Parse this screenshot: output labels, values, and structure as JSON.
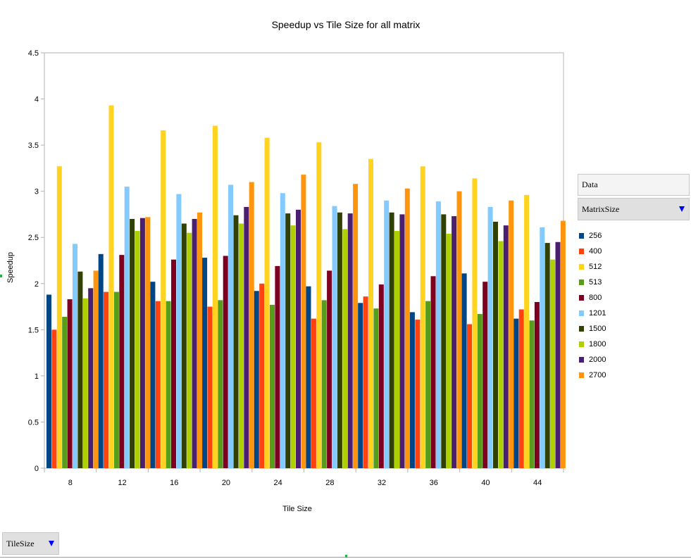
{
  "chart_data": {
    "type": "bar",
    "title": "Speedup vs Tile Size for all matrix",
    "xlabel": "Tile Size",
    "ylabel": "Speedup",
    "ylim": [
      0,
      4.5
    ],
    "yticks": [
      "0",
      "0.5",
      "1",
      "1.5",
      "2",
      "2.5",
      "3",
      "3.5",
      "4",
      "4.5"
    ],
    "categories": [
      "8",
      "12",
      "16",
      "20",
      "24",
      "28",
      "32",
      "36",
      "40",
      "44"
    ],
    "grid": false,
    "legend_position": "right",
    "series": [
      {
        "name": "256",
        "color": "#004586",
        "values": [
          1.88,
          2.32,
          2.02,
          2.28,
          1.92,
          1.97,
          1.79,
          1.69,
          2.11,
          1.62
        ]
      },
      {
        "name": "400",
        "color": "#ff420e",
        "values": [
          1.5,
          1.91,
          1.81,
          1.75,
          2.0,
          1.62,
          1.86,
          1.61,
          1.56,
          1.72
        ]
      },
      {
        "name": "512",
        "color": "#ffd320",
        "values": [
          3.27,
          3.93,
          3.66,
          3.71,
          3.58,
          3.53,
          3.35,
          3.27,
          3.14,
          2.96
        ]
      },
      {
        "name": "513",
        "color": "#579d1c",
        "values": [
          1.64,
          1.91,
          1.81,
          1.82,
          1.77,
          1.82,
          1.73,
          1.81,
          1.67,
          1.6
        ]
      },
      {
        "name": "800",
        "color": "#7e0021",
        "values": [
          1.83,
          2.31,
          2.26,
          2.3,
          2.19,
          2.14,
          1.99,
          2.08,
          2.02,
          1.8
        ]
      },
      {
        "name": "1201",
        "color": "#83caff",
        "values": [
          2.43,
          3.05,
          2.97,
          3.07,
          2.98,
          2.84,
          2.9,
          2.89,
          2.83,
          2.61
        ]
      },
      {
        "name": "1500",
        "color": "#314004",
        "values": [
          2.13,
          2.7,
          2.65,
          2.74,
          2.76,
          2.77,
          2.77,
          2.75,
          2.67,
          2.44
        ]
      },
      {
        "name": "1800",
        "color": "#aecf00",
        "values": [
          1.84,
          2.57,
          2.55,
          2.65,
          2.63,
          2.59,
          2.57,
          2.54,
          2.46,
          2.26
        ]
      },
      {
        "name": "2000",
        "color": "#4b1f6f",
        "values": [
          1.95,
          2.71,
          2.7,
          2.83,
          2.8,
          2.76,
          2.75,
          2.73,
          2.63,
          2.45
        ]
      },
      {
        "name": "2700",
        "color": "#ff950e",
        "values": [
          2.14,
          2.72,
          2.77,
          3.1,
          3.18,
          3.08,
          3.03,
          3.0,
          2.9,
          2.68
        ]
      }
    ]
  },
  "pivot": {
    "data_field": "Data",
    "column_field": "MatrixSize",
    "row_field": "TileSize"
  }
}
